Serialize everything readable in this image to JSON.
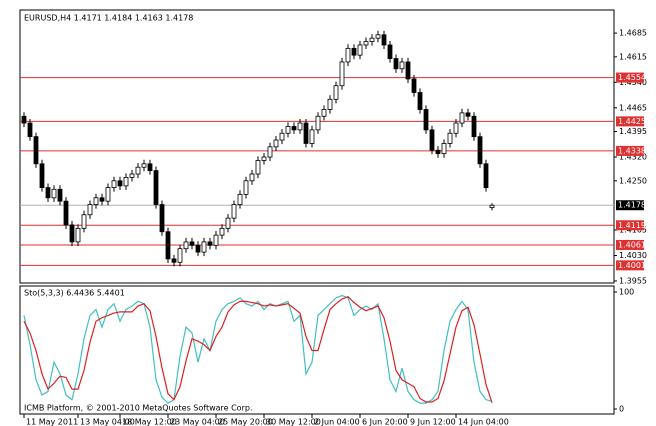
{
  "chart_data": [
    {
      "type": "candlestick",
      "title": "EURUSD,H4  1.4171 1.4184 1.4163 1.4178",
      "categories": [
        "11 May 2011",
        null,
        null,
        null,
        null,
        null,
        null,
        null,
        null,
        "13 May 04:00",
        null,
        null,
        null,
        null,
        null,
        null,
        "18 May 12:00",
        null,
        null,
        null,
        null,
        null,
        null,
        null,
        "23 May 04:00",
        null,
        null,
        null,
        null,
        null,
        null,
        null,
        "25 May 20:00",
        null,
        null,
        null,
        null,
        null,
        null,
        null,
        "30 May 12:00",
        null,
        null,
        null,
        null,
        null,
        null,
        null,
        "2 Jun 04:00",
        null,
        null,
        null,
        null,
        null,
        null,
        null,
        "6 Jun 20:00",
        null,
        null,
        null,
        null,
        null,
        null,
        null,
        "9 Jun 12:00",
        null,
        null,
        null,
        null,
        null,
        null,
        null,
        "14 Jun 04:00",
        null,
        null,
        null,
        null,
        null,
        null
      ],
      "open": [
        1.444,
        1.442,
        1.438,
        1.43,
        1.423,
        1.42,
        1.4225,
        1.419,
        1.412,
        1.407,
        1.411,
        1.415,
        1.418,
        1.42,
        1.419,
        1.423,
        1.425,
        1.4235,
        1.426,
        1.427,
        1.429,
        1.43,
        1.428,
        1.418,
        1.41,
        1.402,
        1.401,
        1.405,
        1.407,
        1.406,
        1.404,
        1.407,
        1.406,
        1.409,
        1.411,
        1.414,
        1.418,
        1.421,
        1.425,
        1.427,
        1.431,
        1.432,
        1.435,
        1.437,
        1.439,
        1.441,
        1.44,
        1.442,
        1.436,
        1.44,
        1.444,
        1.446,
        1.449,
        1.453,
        1.46,
        1.464,
        1.462,
        1.465,
        1.466,
        1.467,
        1.468,
        1.465,
        1.461,
        1.458,
        1.46,
        1.455,
        1.451,
        1.446,
        1.44,
        1.434,
        1.433,
        1.436,
        1.439,
        1.442,
        1.445,
        1.444,
        1.438,
        1.43,
        1.4171
      ],
      "high": [
        1.4452,
        1.4432,
        1.4392,
        1.4312,
        1.4242,
        1.4237,
        1.4237,
        1.4202,
        1.4132,
        1.4122,
        1.4162,
        1.4192,
        1.4212,
        1.4212,
        1.4242,
        1.4262,
        1.4262,
        1.4272,
        1.4282,
        1.4302,
        1.4312,
        1.4312,
        1.4292,
        1.4192,
        1.4112,
        1.4032,
        1.4062,
        1.4082,
        1.4082,
        1.4072,
        1.4082,
        1.4082,
        1.4102,
        1.4122,
        1.4152,
        1.4192,
        1.4222,
        1.4262,
        1.4282,
        1.4322,
        1.4332,
        1.4362,
        1.4382,
        1.4402,
        1.4422,
        1.4422,
        1.4432,
        1.4432,
        1.4412,
        1.4452,
        1.4472,
        1.4502,
        1.4542,
        1.4612,
        1.4652,
        1.4652,
        1.4662,
        1.4672,
        1.4682,
        1.4692,
        1.4692,
        1.4662,
        1.4622,
        1.4612,
        1.4612,
        1.4562,
        1.4522,
        1.4472,
        1.4412,
        1.4352,
        1.4372,
        1.4402,
        1.4432,
        1.4462,
        1.4462,
        1.4452,
        1.4392,
        1.4312,
        1.4184
      ],
      "low": [
        1.4408,
        1.4368,
        1.4288,
        1.4218,
        1.4188,
        1.4188,
        1.4178,
        1.4108,
        1.4058,
        1.4058,
        1.4098,
        1.4138,
        1.4168,
        1.4178,
        1.4178,
        1.4218,
        1.4223,
        1.4223,
        1.4248,
        1.4258,
        1.4278,
        1.4268,
        1.4168,
        1.4088,
        1.4008,
        1.3998,
        1.3998,
        1.4038,
        1.4048,
        1.4028,
        1.4028,
        1.4048,
        1.4048,
        1.4078,
        1.4098,
        1.4128,
        1.4168,
        1.4198,
        1.4238,
        1.4258,
        1.4298,
        1.4308,
        1.4338,
        1.4358,
        1.4378,
        1.4388,
        1.4388,
        1.4348,
        1.4348,
        1.4388,
        1.4428,
        1.4448,
        1.4478,
        1.4518,
        1.4588,
        1.4608,
        1.4608,
        1.4638,
        1.4648,
        1.4658,
        1.4638,
        1.4598,
        1.4568,
        1.4568,
        1.4538,
        1.4498,
        1.4448,
        1.4388,
        1.4328,
        1.4318,
        1.4318,
        1.4348,
        1.4378,
        1.4408,
        1.4428,
        1.4368,
        1.4288,
        1.4218,
        1.4163
      ],
      "close": [
        1.442,
        1.438,
        1.43,
        1.423,
        1.42,
        1.4225,
        1.419,
        1.412,
        1.407,
        1.411,
        1.415,
        1.418,
        1.42,
        1.419,
        1.423,
        1.425,
        1.4235,
        1.426,
        1.427,
        1.429,
        1.43,
        1.428,
        1.418,
        1.41,
        1.402,
        1.401,
        1.405,
        1.407,
        1.406,
        1.404,
        1.407,
        1.406,
        1.409,
        1.411,
        1.414,
        1.418,
        1.421,
        1.425,
        1.427,
        1.431,
        1.432,
        1.435,
        1.437,
        1.439,
        1.441,
        1.44,
        1.442,
        1.436,
        1.44,
        1.444,
        1.446,
        1.449,
        1.453,
        1.46,
        1.464,
        1.462,
        1.465,
        1.466,
        1.467,
        1.468,
        1.465,
        1.461,
        1.458,
        1.46,
        1.455,
        1.451,
        1.446,
        1.44,
        1.434,
        1.433,
        1.436,
        1.439,
        1.442,
        1.445,
        1.444,
        1.438,
        1.43,
        1.423,
        1.4178
      ],
      "up_color": "#ffffff",
      "down_color": "#000000",
      "levels": [
        1.4554,
        1.4425,
        1.4338,
        1.4119,
        1.4061,
        1.4001
      ],
      "level_color": "#e03030",
      "current_price": 1.4178,
      "ylim": [
        1.3949,
        1.4753
      ],
      "yticks": [
        1.4685,
        1.4615,
        {
          "value": 1.454,
          "label": "1.4540"
        },
        1.4465,
        1.4395,
        {
          "value": 1.432,
          "label": "1.4320"
        },
        {
          "value": 1.425,
          "label": "1.4250"
        },
        1.4105,
        {
          "value": 1.403,
          "label": "1.4030"
        },
        1.3955
      ]
    },
    {
      "type": "line",
      "title": "Sto(5,3,3) 6.4436 5.4401",
      "annotation": "ICMB Platform, © 2001-2010 MetaQuotes Software Corp.",
      "series": [
        {
          "color": "#40c0c0",
          "values": [
            80,
            55,
            25,
            12,
            15,
            40,
            30,
            12,
            8,
            30,
            60,
            80,
            85,
            70,
            85,
            90,
            75,
            85,
            88,
            92,
            90,
            70,
            25,
            10,
            5,
            8,
            45,
            70,
            65,
            40,
            60,
            50,
            75,
            85,
            90,
            92,
            95,
            90,
            88,
            92,
            85,
            90,
            88,
            90,
            92,
            75,
            80,
            30,
            40,
            80,
            85,
            90,
            95,
            97,
            95,
            80,
            85,
            88,
            85,
            90,
            60,
            25,
            15,
            35,
            15,
            8,
            5,
            5,
            8,
            15,
            50,
            75,
            85,
            92,
            85,
            40,
            15,
            8,
            6.4436
          ]
        },
        {
          "color": "#e02020",
          "values": [
            75,
            65,
            50,
            30,
            17,
            22,
            28,
            27,
            17,
            17,
            33,
            57,
            75,
            78,
            80,
            82,
            83,
            83,
            83,
            88,
            90,
            84,
            62,
            35,
            13,
            8,
            19,
            41,
            60,
            58,
            55,
            50,
            62,
            70,
            83,
            89,
            92,
            92,
            91,
            90,
            88,
            89,
            88,
            89,
            90,
            86,
            82,
            62,
            50,
            50,
            68,
            85,
            90,
            94,
            96,
            91,
            87,
            84,
            86,
            88,
            78,
            58,
            33,
            25,
            22,
            19,
            9,
            6,
            6,
            9,
            24,
            47,
            70,
            84,
            87,
            72,
            47,
            21,
            5.4401
          ]
        }
      ],
      "ylim": [
        0,
        100
      ],
      "yticks": [
        0,
        100
      ]
    }
  ]
}
